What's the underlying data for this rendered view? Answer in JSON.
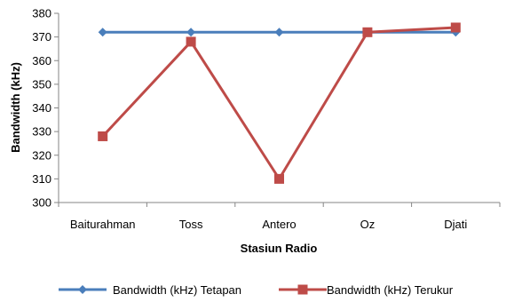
{
  "chart_data": {
    "type": "line",
    "title": "",
    "xlabel": "Stasiun Radio",
    "ylabel": "Bandwidth (kHz)",
    "categories": [
      "Baiturahman",
      "Toss",
      "Antero",
      "Oz",
      "Djati"
    ],
    "ylim": [
      300,
      380
    ],
    "yticks": [
      300,
      310,
      320,
      330,
      340,
      350,
      360,
      370,
      380
    ],
    "grid": false,
    "legend_position": "bottom",
    "series": [
      {
        "name": "Bandwidth (kHz) Tetapan",
        "values": [
          372,
          372,
          372,
          372,
          372
        ],
        "color": "#4a7ebb",
        "marker": "diamond"
      },
      {
        "name": "Bandwidth (kHz) Terukur",
        "values": [
          328,
          368,
          310,
          372,
          374
        ],
        "color": "#be4b48",
        "marker": "square"
      }
    ]
  }
}
